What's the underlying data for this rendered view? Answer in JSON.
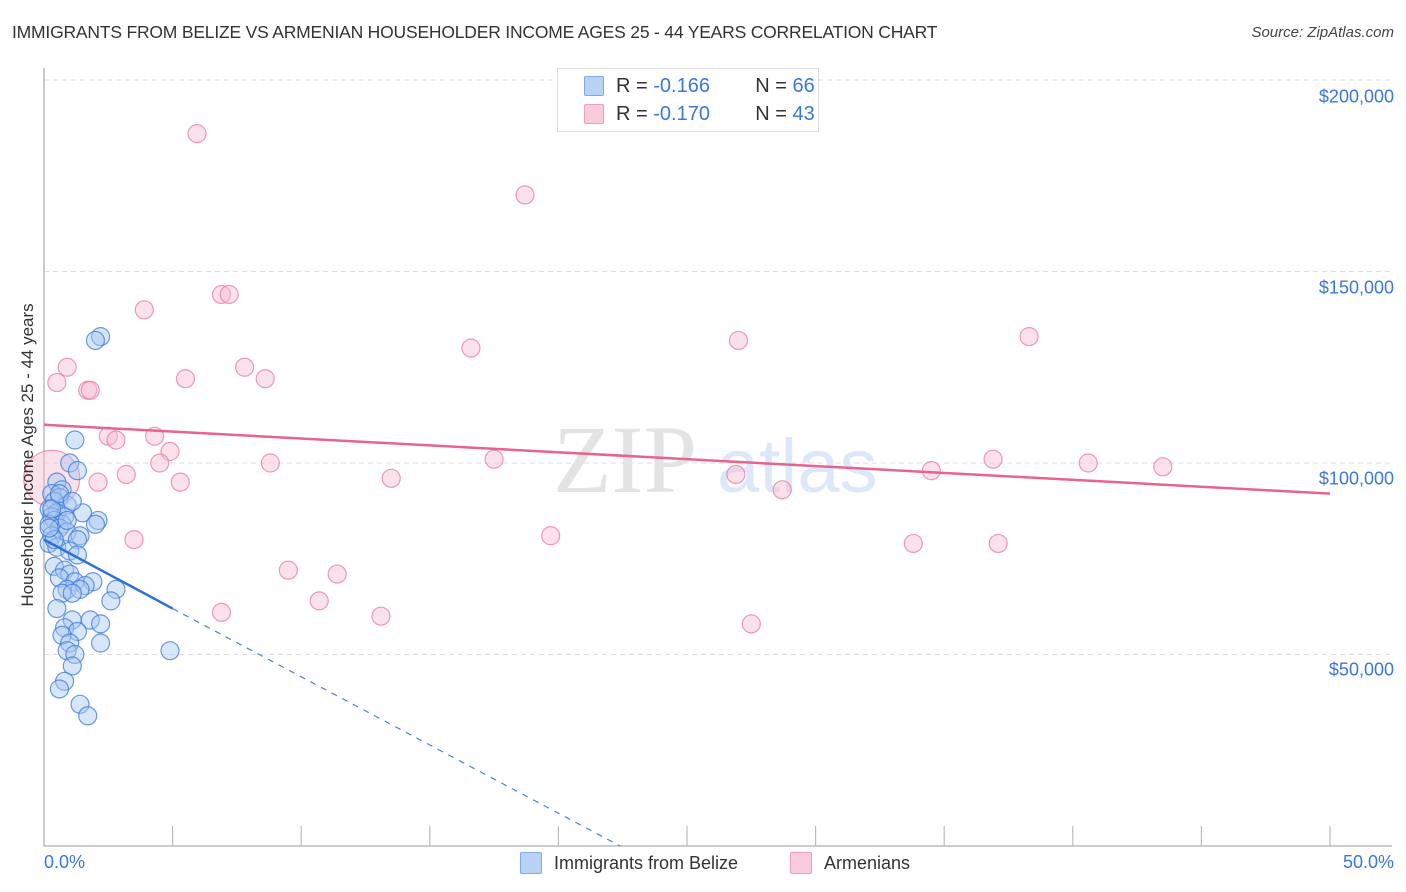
{
  "header": {
    "title": "IMMIGRANTS FROM BELIZE VS ARMENIAN HOUSEHOLDER INCOME AGES 25 - 44 YEARS CORRELATION CHART",
    "source": "Source: ZipAtlas.com"
  },
  "legend": {
    "rows": [
      {
        "r_label": "R =",
        "r_value": "-0.166",
        "n_label": "N =",
        "n_value": "66",
        "color": "#a9c8f5"
      },
      {
        "r_label": "R =",
        "r_value": "-0.170",
        "n_label": "N =",
        "n_value": "43",
        "color": "#f7bcd0"
      }
    ]
  },
  "bottom_legend": [
    {
      "label": "Immigrants from Belize",
      "color": "#a9c8f5"
    },
    {
      "label": "Armenians",
      "color": "#f7bcd0"
    }
  ],
  "axes": {
    "y_title": "Householder Income Ages 25 - 44 years",
    "y_ticks": [
      "$200,000",
      "$150,000",
      "$100,000",
      "$50,000"
    ],
    "x_min_label": "0.0%",
    "x_max_label": "50.0%"
  },
  "watermark": {
    "zip": "ZIP",
    "atlas": "atlas"
  },
  "colors": {
    "blue": "#3b78d8",
    "blue_fill": "#a9c8f5",
    "pink": "#e8638f",
    "pink_fill": "#f7bcd0",
    "axis_text": "#3b78d8"
  },
  "chart_data": {
    "type": "scatter",
    "title": "IMMIGRANTS FROM BELIZE VS ARMENIAN HOUSEHOLDER INCOME AGES 25 - 44 YEARS CORRELATION CHART",
    "xlabel": "",
    "ylabel": "Householder Income Ages 25 - 44 years",
    "xlim": [
      0,
      50
    ],
    "ylim": [
      0,
      210000
    ],
    "x_unit": "%",
    "y_ticks": [
      50000,
      100000,
      150000,
      200000
    ],
    "grid": "horizontal dashed",
    "legend_position": "top center (stats) and bottom center (series)",
    "series": [
      {
        "name": "Immigrants from Belize",
        "r": -0.166,
        "n": 66,
        "color": "#3b78d8",
        "trend": {
          "x0": 0,
          "y0": 80000,
          "x1": 5.0,
          "y1": 62000,
          "extrapolated_to": [
            22.4,
            0
          ]
        },
        "points": [
          [
            2.2,
            133000
          ],
          [
            2.0,
            132000
          ],
          [
            1.2,
            106000
          ],
          [
            1.0,
            100000
          ],
          [
            1.3,
            98000
          ],
          [
            0.5,
            95000
          ],
          [
            0.7,
            93000
          ],
          [
            0.3,
            92000
          ],
          [
            0.6,
            91000
          ],
          [
            0.4,
            90000
          ],
          [
            0.9,
            89000
          ],
          [
            0.2,
            88000
          ],
          [
            0.5,
            87000
          ],
          [
            1.5,
            87000
          ],
          [
            0.3,
            86000
          ],
          [
            0.8,
            86000
          ],
          [
            2.1,
            85000
          ],
          [
            0.4,
            85000
          ],
          [
            0.7,
            84000
          ],
          [
            2.0,
            84000
          ],
          [
            0.2,
            84000
          ],
          [
            0.6,
            83000
          ],
          [
            0.9,
            82000
          ],
          [
            0.3,
            81000
          ],
          [
            1.4,
            81000
          ],
          [
            1.3,
            80000
          ],
          [
            0.2,
            79000
          ],
          [
            0.5,
            78000
          ],
          [
            1.0,
            77000
          ],
          [
            1.3,
            76000
          ],
          [
            0.4,
            73000
          ],
          [
            0.8,
            72000
          ],
          [
            1.0,
            71000
          ],
          [
            0.6,
            70000
          ],
          [
            1.2,
            69000
          ],
          [
            1.9,
            69000
          ],
          [
            1.6,
            68000
          ],
          [
            2.8,
            67000
          ],
          [
            0.9,
            67000
          ],
          [
            1.4,
            67000
          ],
          [
            0.7,
            66000
          ],
          [
            1.1,
            66000
          ],
          [
            2.6,
            64000
          ],
          [
            0.5,
            62000
          ],
          [
            1.1,
            59000
          ],
          [
            1.8,
            59000
          ],
          [
            2.2,
            58000
          ],
          [
            0.8,
            57000
          ],
          [
            1.3,
            56000
          ],
          [
            0.7,
            55000
          ],
          [
            1.0,
            53000
          ],
          [
            2.2,
            53000
          ],
          [
            0.9,
            51000
          ],
          [
            1.2,
            50000
          ],
          [
            4.9,
            51000
          ],
          [
            1.1,
            47000
          ],
          [
            0.8,
            43000
          ],
          [
            0.6,
            41000
          ],
          [
            1.4,
            37000
          ],
          [
            1.7,
            34000
          ],
          [
            0.3,
            88000
          ],
          [
            0.6,
            92000
          ],
          [
            0.4,
            80000
          ],
          [
            0.9,
            85000
          ],
          [
            1.1,
            90000
          ],
          [
            0.2,
            83000
          ]
        ]
      },
      {
        "name": "Armenians",
        "r": -0.17,
        "n": 43,
        "color": "#e8638f",
        "trend": {
          "x0": 0,
          "y0": 110000,
          "x1": 50,
          "y1": 92000
        },
        "points": [
          [
            5.95,
            186000
          ],
          [
            18.7,
            170000
          ],
          [
            6.9,
            144000
          ],
          [
            7.2,
            144000
          ],
          [
            3.9,
            140000
          ],
          [
            16.6,
            130000
          ],
          [
            27.0,
            132000
          ],
          [
            38.3,
            133000
          ],
          [
            0.9,
            125000
          ],
          [
            0.5,
            121000
          ],
          [
            1.7,
            119000
          ],
          [
            5.5,
            122000
          ],
          [
            7.8,
            125000
          ],
          [
            8.6,
            122000
          ],
          [
            2.5,
            107000
          ],
          [
            2.8,
            106000
          ],
          [
            4.3,
            107000
          ],
          [
            4.9,
            103000
          ],
          [
            4.5,
            100000
          ],
          [
            3.2,
            97000
          ],
          [
            2.1,
            95000
          ],
          [
            5.3,
            95000
          ],
          [
            8.8,
            100000
          ],
          [
            13.5,
            96000
          ],
          [
            17.5,
            101000
          ],
          [
            26.9,
            97000
          ],
          [
            28.7,
            93000
          ],
          [
            34.5,
            98000
          ],
          [
            36.9,
            101000
          ],
          [
            40.6,
            100000
          ],
          [
            43.5,
            99000
          ],
          [
            3.5,
            80000
          ],
          [
            19.7,
            81000
          ],
          [
            9.5,
            72000
          ],
          [
            11.4,
            71000
          ],
          [
            10.7,
            64000
          ],
          [
            6.9,
            61000
          ],
          [
            13.1,
            60000
          ],
          [
            27.5,
            58000
          ],
          [
            33.8,
            79000
          ],
          [
            37.1,
            79000
          ],
          [
            0.3,
            96000
          ],
          [
            1.8,
            119000
          ]
        ]
      }
    ]
  }
}
